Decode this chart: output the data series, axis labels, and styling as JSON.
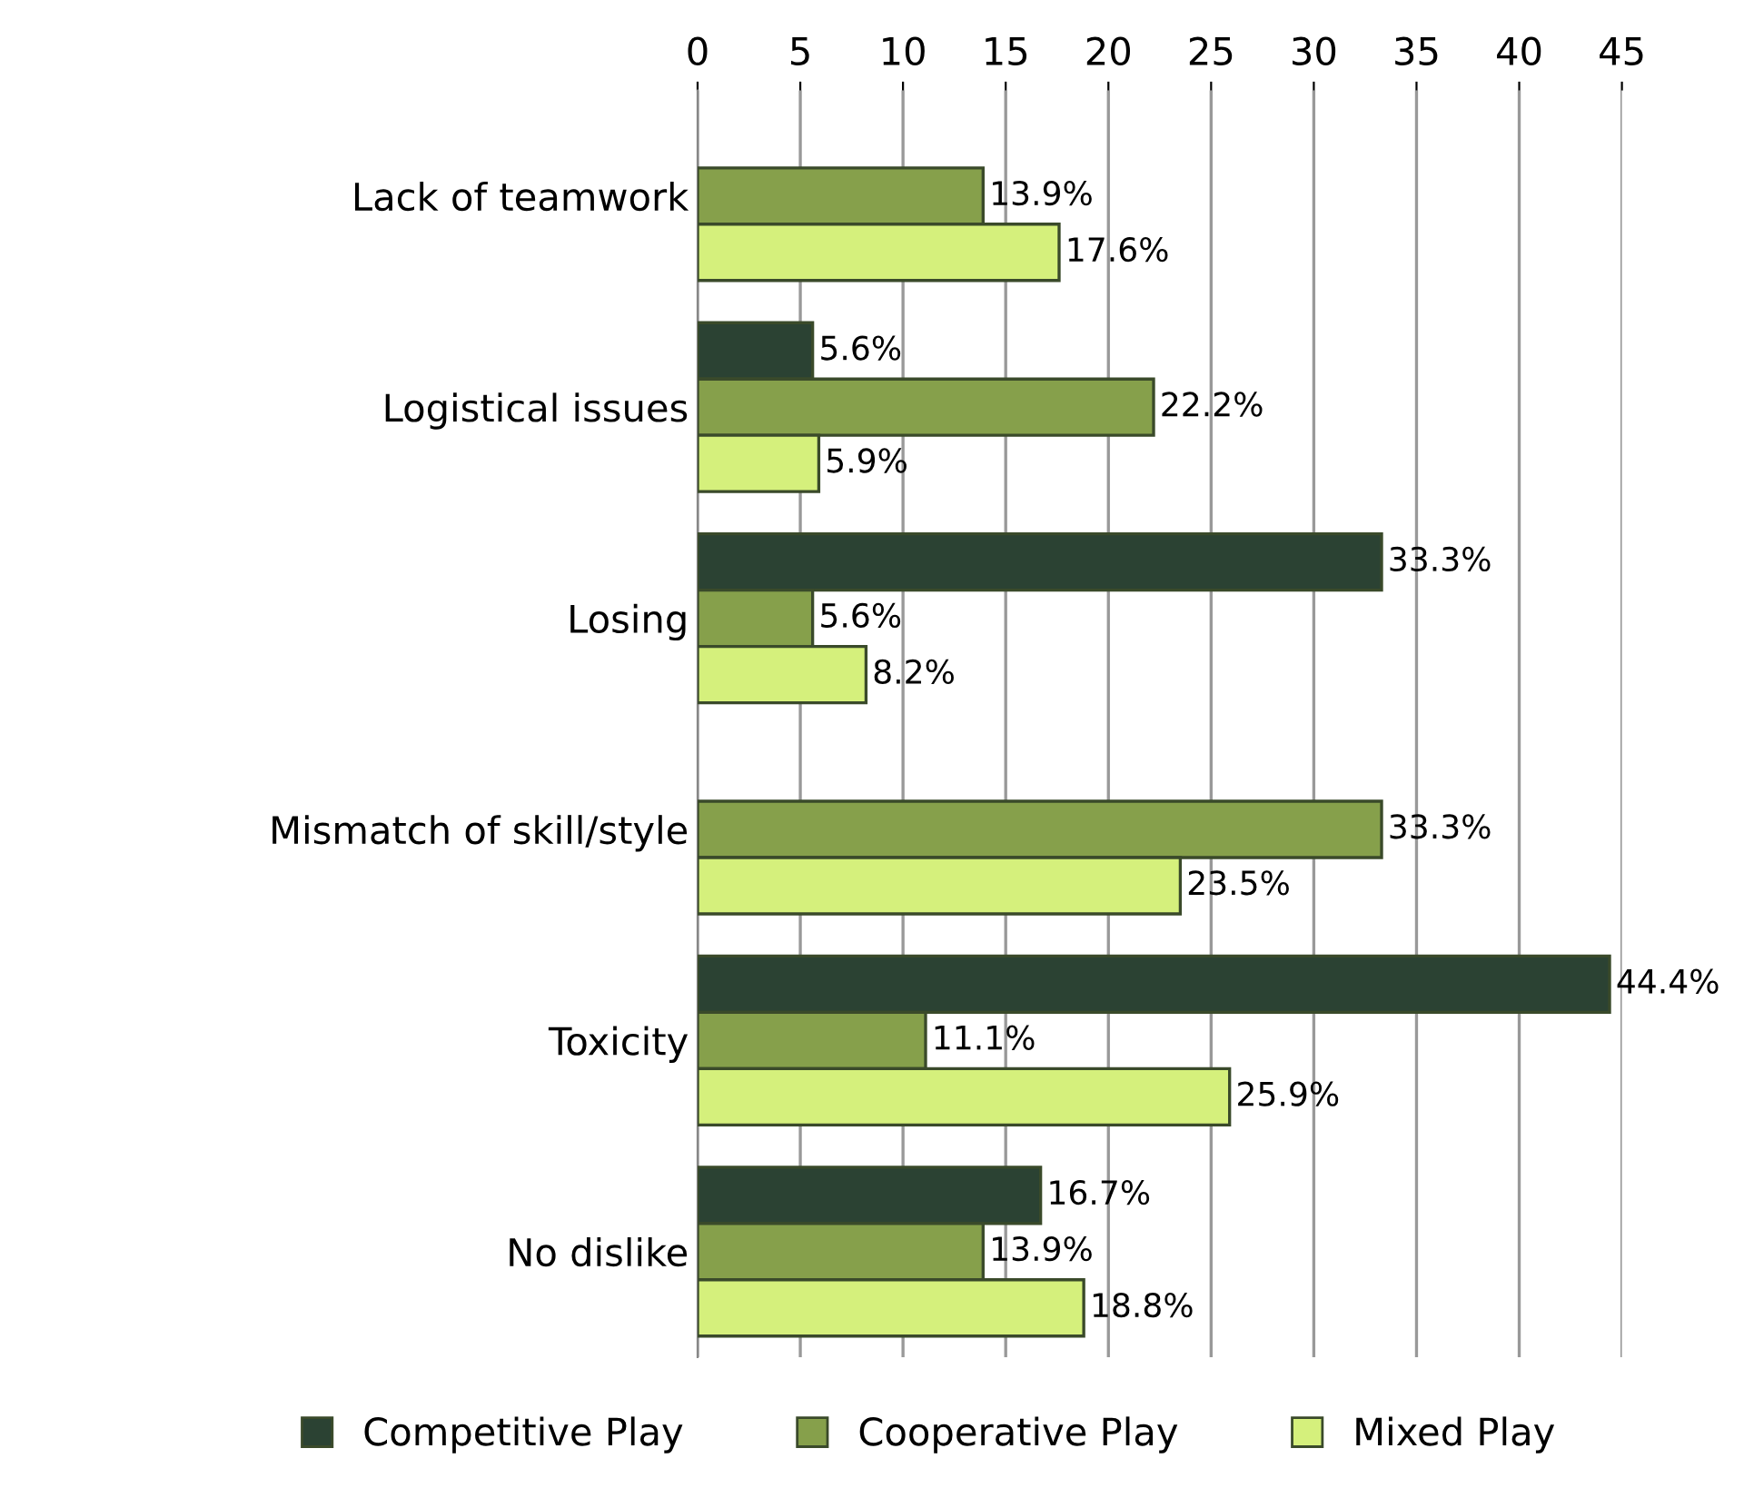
{
  "chart_data": {
    "type": "bar",
    "orientation": "horizontal",
    "categories": [
      "Lack of teamwork",
      "Logistical issues",
      "Losing",
      "Mismatch of skill/style",
      "Toxicity",
      "No dislike"
    ],
    "series": [
      {
        "name": "Competitive Play",
        "color": "#2b4233",
        "values": [
          null,
          5.6,
          33.3,
          null,
          44.4,
          16.7
        ],
        "value_labels": [
          null,
          "5.6%",
          "33.3%",
          null,
          "44.4%",
          "16.7%"
        ]
      },
      {
        "name": "Cooperative Play",
        "color": "#86a04b",
        "values": [
          13.9,
          22.2,
          5.6,
          33.3,
          11.1,
          13.9
        ],
        "value_labels": [
          "13.9%",
          "22.2%",
          "5.6%",
          "33.3%",
          "11.1%",
          "13.9%"
        ]
      },
      {
        "name": "Mixed Play",
        "color": "#d5f07c",
        "values": [
          17.6,
          5.9,
          8.2,
          23.5,
          25.9,
          18.8
        ],
        "value_labels": [
          "17.6%",
          "5.9%",
          "8.2%",
          "23.5%",
          "25.9%",
          "18.8%"
        ]
      }
    ],
    "xlim": [
      0,
      45
    ],
    "xticks": [
      0,
      5,
      10,
      15,
      20,
      25,
      30,
      35,
      40,
      45
    ],
    "grid": "x",
    "legend": "bottom"
  }
}
